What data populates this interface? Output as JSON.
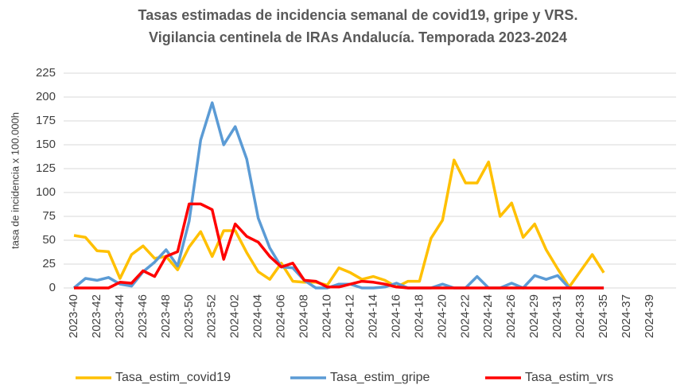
{
  "chart_data": {
    "type": "line",
    "title": "Tasas estimadas de incidencia semanal de covid19, gripe y VRS.",
    "subtitle": "Vigilancia centinela de IRAs Andalucía. Temporada 2023-2024",
    "y_label": "tasa de incidencia x 100.000h",
    "categories": [
      "2023-40",
      null,
      "2023-42",
      null,
      "2023-44",
      null,
      "2023-46",
      null,
      "2023-48",
      null,
      "2023-50",
      null,
      "2023-52",
      null,
      "2024-02",
      null,
      "2024-04",
      null,
      "2024-06",
      null,
      "2024-08",
      null,
      "2024-10",
      null,
      "2024-12",
      null,
      "2024-14",
      null,
      "2024-16",
      null,
      "2024-18",
      null,
      "2024-20",
      null,
      "2024-22",
      null,
      "2024-24",
      null,
      "2024-26",
      null,
      "2024-29",
      null,
      "2024-31",
      null,
      "2024-33",
      null,
      "2024-35",
      null,
      "2024-37",
      null,
      "2024-39"
    ],
    "series": [
      {
        "name": "Tasa_estim_covid19",
        "color": "#ffc000",
        "values": [
          55,
          53,
          39,
          38,
          10,
          35,
          44,
          31,
          33,
          19,
          43,
          59,
          33,
          60,
          60,
          37,
          17,
          9,
          26,
          7,
          6,
          6,
          3,
          21,
          16,
          9,
          12,
          8,
          1,
          7,
          7,
          52,
          71,
          134,
          110,
          110,
          132,
          75,
          89,
          53,
          67,
          40,
          20,
          1,
          18,
          35,
          16,
          null,
          null,
          null,
          null
        ]
      },
      {
        "name": "Tasa_estim_gripe",
        "color": "#5b9bd5",
        "values": [
          0,
          10,
          8,
          11,
          4,
          2,
          17,
          27,
          40,
          23,
          70,
          155,
          194,
          150,
          169,
          135,
          73,
          42,
          22,
          21,
          8,
          0,
          0,
          4,
          4,
          0,
          0,
          1,
          5,
          0,
          0,
          0,
          4,
          0,
          0,
          12,
          0,
          0,
          5,
          0,
          13,
          9,
          13,
          0,
          0,
          0,
          0,
          null,
          null,
          null,
          null
        ]
      },
      {
        "name": "Tasa_estim_vrs",
        "color": "#ff0000",
        "values": [
          0,
          0,
          0,
          0,
          6,
          5,
          18,
          12,
          33,
          38,
          88,
          88,
          82,
          30,
          67,
          54,
          48,
          33,
          22,
          26,
          8,
          7,
          1,
          1,
          4,
          7,
          6,
          4,
          1,
          0,
          0,
          0,
          0,
          0,
          0,
          0,
          0,
          0,
          0,
          0,
          0,
          0,
          0,
          0,
          0,
          0,
          0,
          null,
          null,
          null,
          null
        ]
      }
    ],
    "ylim": [
      0,
      225
    ],
    "yticks": [
      0,
      25,
      50,
      75,
      100,
      125,
      150,
      175,
      200,
      225
    ],
    "grid": true,
    "legend": "bottom"
  }
}
